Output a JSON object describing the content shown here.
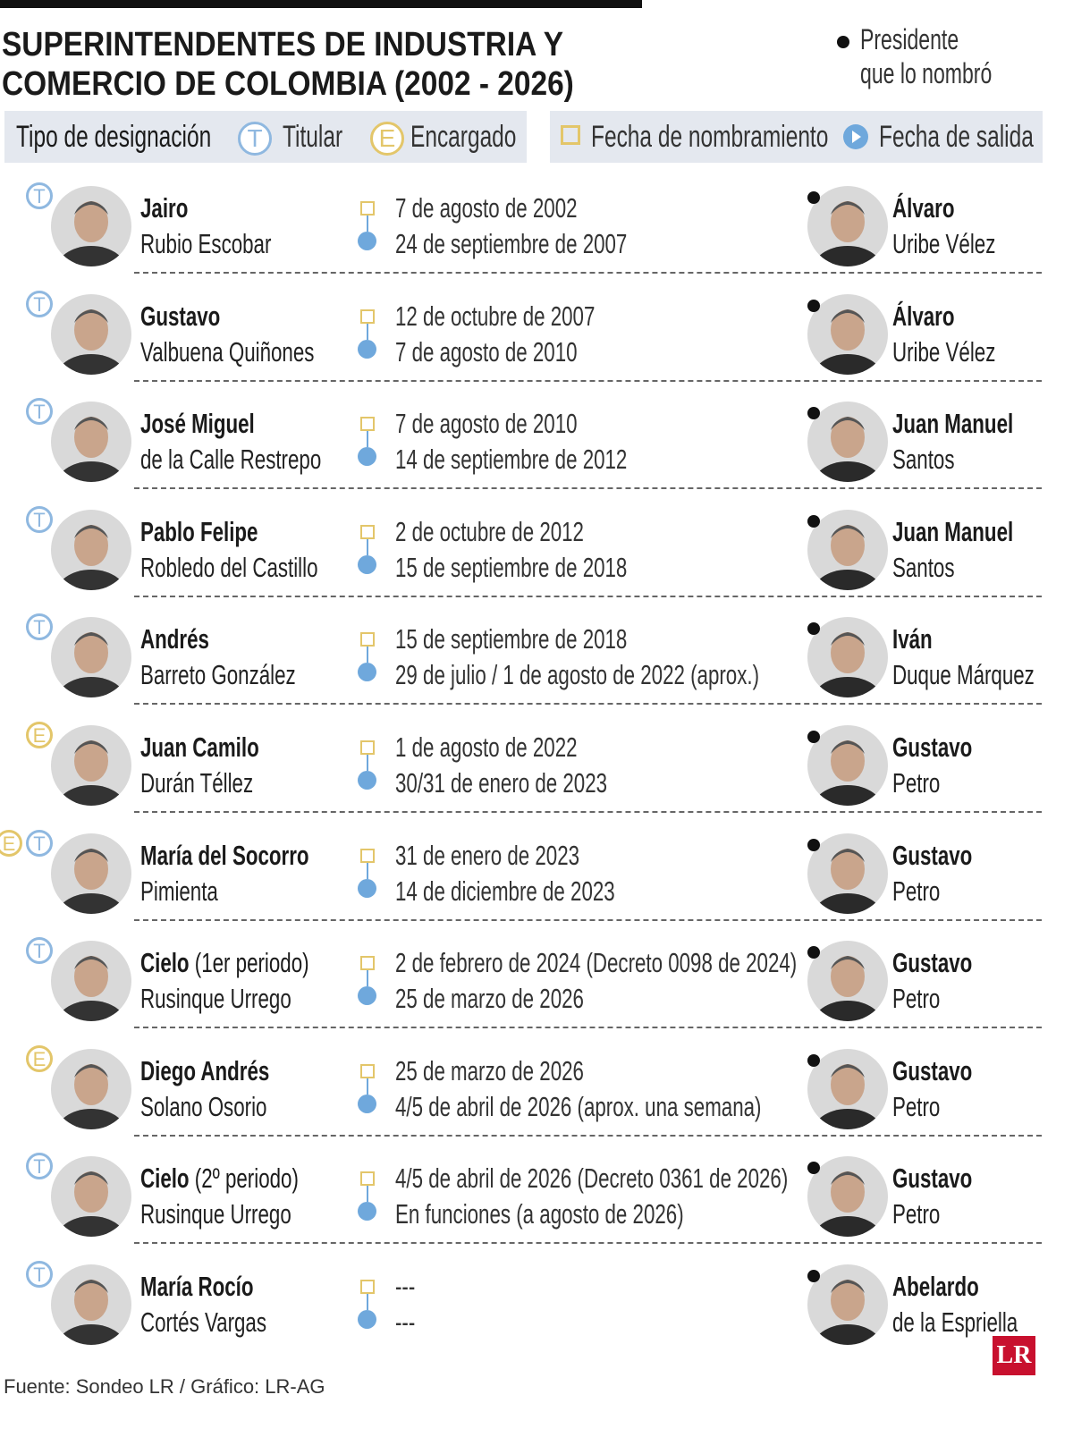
{
  "header": {
    "title_lines": [
      "SUPERINTENDENTES DE INDUSTRIA Y",
      "COMERCIO DE COLOMBIA (2002 - 2026)"
    ],
    "president_legend": [
      "Presidente",
      "que lo nombró"
    ]
  },
  "legend": {
    "type_label": "Tipo de designación",
    "types": [
      {
        "letter": "T",
        "label": "Titular"
      },
      {
        "letter": "E",
        "label": "Encargado"
      }
    ],
    "start_label": "Fecha de nombramiento",
    "end_label": "Fecha de salida"
  },
  "rows": [
    {
      "badges": [
        "T"
      ],
      "first": "Jairo",
      "last": "Rubio Escobar",
      "start": "7 de agosto de 2002",
      "end": "24 de septiembre de 2007",
      "president_first": "Álvaro",
      "president_last": "Uribe Vélez"
    },
    {
      "badges": [
        "T"
      ],
      "first": "Gustavo",
      "last": "Valbuena Quiñones",
      "start": "12 de octubre de 2007",
      "end": "7 de agosto de 2010",
      "president_first": "Álvaro",
      "president_last": "Uribe Vélez"
    },
    {
      "badges": [
        "T"
      ],
      "first": "José Miguel",
      "last": "de la Calle Restrepo",
      "start": "7 de agosto de 2010",
      "end": "14 de septiembre de 2012",
      "president_first": "Juan Manuel",
      "president_last": "Santos"
    },
    {
      "badges": [
        "T"
      ],
      "first": "Pablo Felipe",
      "last": "Robledo del Castillo",
      "start": "2 de octubre de 2012",
      "end": "15 de septiembre de 2018",
      "president_first": "Juan Manuel",
      "president_last": "Santos"
    },
    {
      "badges": [
        "T"
      ],
      "first": "Andrés",
      "last": "Barreto González",
      "start": "15 de septiembre de 2018",
      "end": "29 de julio / 1 de agosto de 2022 (aprox.)",
      "president_first": "Iván",
      "president_last": "Duque Márquez"
    },
    {
      "badges": [
        "E"
      ],
      "first": "Juan Camilo",
      "last": "Durán Téllez",
      "start": "1 de agosto de 2022",
      "end": "30/31 de enero de 2023",
      "president_first": "Gustavo",
      "president_last": "Petro"
    },
    {
      "badges": [
        "E",
        "T"
      ],
      "first": "María del Socorro",
      "last": "Pimienta",
      "start": "31 de enero de 2023",
      "end": "14 de diciembre de 2023",
      "president_first": "Gustavo",
      "president_last": "Petro"
    },
    {
      "badges": [
        "T"
      ],
      "first": "Cielo",
      "note": "(1er periodo)",
      "last": "Rusinque Urrego",
      "start": "2 de febrero de 2024 (Decreto 0098 de 2024)",
      "end": "25 de marzo de 2026",
      "president_first": "Gustavo",
      "president_last": "Petro"
    },
    {
      "badges": [
        "E"
      ],
      "first": "Diego Andrés",
      "last": "Solano Osorio",
      "start": "25 de marzo de 2026",
      "end": "4/5 de abril de 2026 (aprox. una semana)",
      "president_first": "Gustavo",
      "president_last": "Petro"
    },
    {
      "badges": [
        "T"
      ],
      "first": "Cielo",
      "note": "(2º periodo)",
      "last": "Rusinque Urrego",
      "start": "4/5 de abril de 2026 (Decreto 0361 de 2026)",
      "end": "En funciones (a agosto de 2026)",
      "president_first": "Gustavo",
      "president_last": "Petro"
    },
    {
      "badges": [
        "T"
      ],
      "first": "María Rocío",
      "last": "Cortés Vargas",
      "start": "---",
      "end": "---",
      "president_first": "Abelardo",
      "president_last": "de la Espriella"
    }
  ],
  "footer": {
    "source": "Fuente: Sondeo LR / Gráfico: LR-AG",
    "logo": "LR"
  }
}
